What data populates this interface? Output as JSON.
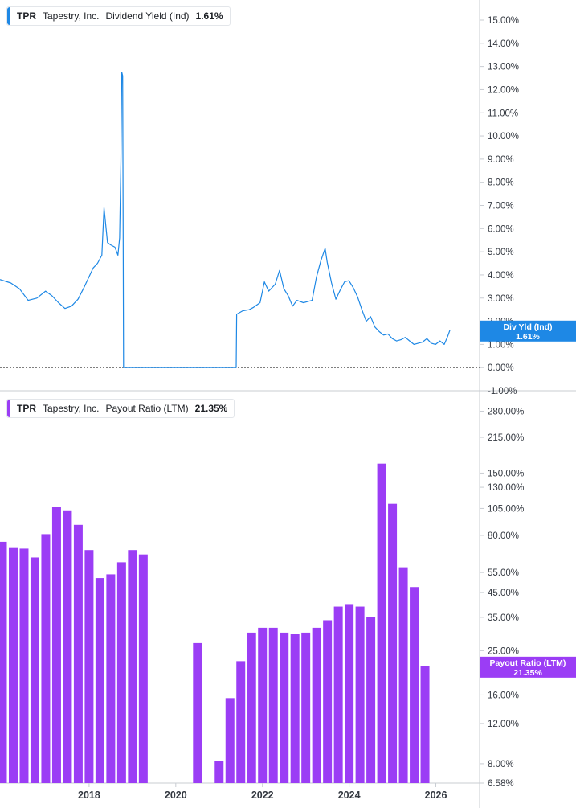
{
  "colors": {
    "yield": "#1e88e5",
    "payout": "#9b3df5",
    "axis": "#c8ccd2",
    "text": "#333840"
  },
  "legend_top": {
    "ticker": "TPR",
    "company": "Tapestry, Inc.",
    "metric": "Dividend Yield (Ind)",
    "value": "1.61%"
  },
  "legend_bottom": {
    "ticker": "TPR",
    "company": "Tapestry, Inc.",
    "metric": "Payout Ratio (LTM)",
    "value": "21.35%"
  },
  "chart_data": [
    {
      "type": "line",
      "series": [
        {
          "name": "Dividend Yield (Ind)"
        }
      ],
      "unit": "%",
      "y_scale": "linear",
      "ylim": [
        -1.0,
        15.6
      ],
      "xlim": [
        2016.0,
        2026.75
      ],
      "y_ticks": [
        "15.00%",
        "14.00%",
        "13.00%",
        "12.00%",
        "11.00%",
        "10.00%",
        "9.00%",
        "8.00%",
        "7.00%",
        "6.00%",
        "5.00%",
        "4.00%",
        "3.00%",
        "2.00%",
        "1.00%",
        "0.00%",
        "-1.00%"
      ],
      "y_tick_values": [
        15,
        14,
        13,
        12,
        11,
        10,
        9,
        8,
        7,
        6,
        5,
        4,
        3,
        2,
        1,
        0,
        -1
      ],
      "points": [
        [
          2016.0,
          3.8
        ],
        [
          2016.25,
          3.65
        ],
        [
          2016.45,
          3.4
        ],
        [
          2016.65,
          2.9
        ],
        [
          2016.85,
          3.0
        ],
        [
          2017.05,
          3.3
        ],
        [
          2017.2,
          3.1
        ],
        [
          2017.35,
          2.8
        ],
        [
          2017.5,
          2.55
        ],
        [
          2017.65,
          2.65
        ],
        [
          2017.8,
          2.95
        ],
        [
          2017.95,
          3.5
        ],
        [
          2018.05,
          3.9
        ],
        [
          2018.15,
          4.3
        ],
        [
          2018.25,
          4.5
        ],
        [
          2018.35,
          4.85
        ],
        [
          2018.4,
          6.9
        ],
        [
          2018.48,
          5.4
        ],
        [
          2018.55,
          5.3
        ],
        [
          2018.65,
          5.2
        ],
        [
          2018.72,
          4.85
        ],
        [
          2018.76,
          5.6
        ],
        [
          2018.79,
          8.9
        ],
        [
          2018.81,
          12.75
        ],
        [
          2018.83,
          12.6
        ],
        [
          2018.85,
          0.0
        ],
        [
          2019.5,
          0.0
        ],
        [
          2020.5,
          0.0
        ],
        [
          2021.45,
          0.0
        ],
        [
          2021.46,
          2.3
        ],
        [
          2021.6,
          2.45
        ],
        [
          2021.75,
          2.5
        ],
        [
          2021.85,
          2.6
        ],
        [
          2022.0,
          2.8
        ],
        [
          2022.1,
          3.7
        ],
        [
          2022.2,
          3.3
        ],
        [
          2022.35,
          3.6
        ],
        [
          2022.45,
          4.2
        ],
        [
          2022.55,
          3.4
        ],
        [
          2022.65,
          3.1
        ],
        [
          2022.75,
          2.65
        ],
        [
          2022.85,
          2.9
        ],
        [
          2023.0,
          2.8
        ],
        [
          2023.1,
          2.85
        ],
        [
          2023.2,
          2.9
        ],
        [
          2023.3,
          3.9
        ],
        [
          2023.4,
          4.6
        ],
        [
          2023.5,
          5.15
        ],
        [
          2023.55,
          4.55
        ],
        [
          2023.65,
          3.65
        ],
        [
          2023.75,
          2.95
        ],
        [
          2023.85,
          3.35
        ],
        [
          2023.95,
          3.7
        ],
        [
          2024.05,
          3.75
        ],
        [
          2024.15,
          3.45
        ],
        [
          2024.25,
          3.05
        ],
        [
          2024.35,
          2.5
        ],
        [
          2024.45,
          2.0
        ],
        [
          2024.55,
          2.2
        ],
        [
          2024.65,
          1.75
        ],
        [
          2024.75,
          1.55
        ],
        [
          2024.85,
          1.4
        ],
        [
          2024.95,
          1.45
        ],
        [
          2025.05,
          1.25
        ],
        [
          2025.15,
          1.15
        ],
        [
          2025.25,
          1.2
        ],
        [
          2025.35,
          1.3
        ],
        [
          2025.45,
          1.15
        ],
        [
          2025.55,
          1.0
        ],
        [
          2025.65,
          1.05
        ],
        [
          2025.75,
          1.1
        ],
        [
          2025.85,
          1.25
        ],
        [
          2025.95,
          1.05
        ],
        [
          2026.05,
          1.0
        ],
        [
          2026.15,
          1.15
        ],
        [
          2026.25,
          1.0
        ],
        [
          2026.33,
          1.35
        ],
        [
          2026.38,
          1.61
        ]
      ],
      "last_label": [
        "Div Yld (Ind)",
        "1.61%"
      ]
    },
    {
      "type": "bar",
      "series": [
        {
          "name": "Payout Ratio (LTM)"
        }
      ],
      "unit": "%",
      "y_scale": "log",
      "ylim": [
        6.58,
        320
      ],
      "xlim": [
        2016.0,
        2026.75
      ],
      "x_ticks": [
        "2018",
        "2020",
        "2022",
        "2024",
        "2026"
      ],
      "x_tick_values": [
        2018,
        2020,
        2022,
        2024,
        2026
      ],
      "y_ticks": [
        "280.00%",
        "215.00%",
        "150.00%",
        "130.00%",
        "105.00%",
        "80.00%",
        "55.00%",
        "45.00%",
        "35.00%",
        "25.00%",
        "16.00%",
        "12.00%",
        "8.00%",
        "6.58%"
      ],
      "y_tick_values": [
        280,
        215,
        150,
        130,
        105,
        80,
        55,
        45,
        35,
        25,
        16,
        12,
        8,
        6.58
      ],
      "bars": [
        [
          2016.0,
          75
        ],
        [
          2016.25,
          71
        ],
        [
          2016.5,
          70
        ],
        [
          2016.75,
          64
        ],
        [
          2017.0,
          81
        ],
        [
          2017.25,
          107
        ],
        [
          2017.5,
          103
        ],
        [
          2017.75,
          89
        ],
        [
          2018.0,
          69
        ],
        [
          2018.25,
          52
        ],
        [
          2018.5,
          54
        ],
        [
          2018.75,
          61
        ],
        [
          2019.0,
          69
        ],
        [
          2019.25,
          66
        ],
        [
          2020.5,
          27
        ],
        [
          2021.0,
          8.2
        ],
        [
          2021.25,
          15.5
        ],
        [
          2021.5,
          22.5
        ],
        [
          2021.75,
          30
        ],
        [
          2022.0,
          31.5
        ],
        [
          2022.25,
          31.5
        ],
        [
          2022.5,
          30
        ],
        [
          2022.75,
          29.5
        ],
        [
          2023.0,
          30
        ],
        [
          2023.25,
          31.5
        ],
        [
          2023.5,
          34
        ],
        [
          2023.75,
          39
        ],
        [
          2024.0,
          40
        ],
        [
          2024.25,
          39
        ],
        [
          2024.5,
          35
        ],
        [
          2024.75,
          165
        ],
        [
          2025.0,
          110
        ],
        [
          2025.25,
          58
        ],
        [
          2025.5,
          47.5
        ],
        [
          2025.75,
          21.35
        ]
      ],
      "last_label": [
        "Payout Ratio (LTM)",
        "21.35%"
      ]
    }
  ]
}
